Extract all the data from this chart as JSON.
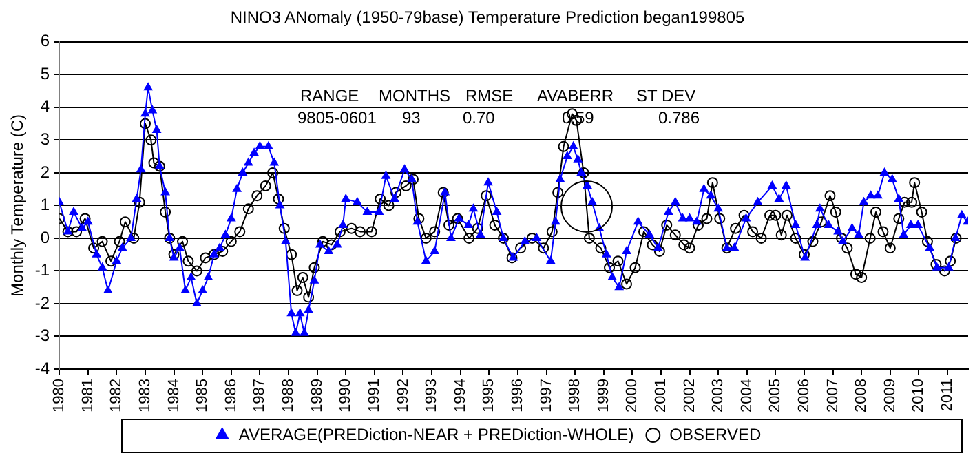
{
  "chart_data": {
    "type": "line",
    "title": "NINO3 ANomaly (1950-79base) Temperature Prediction began199805",
    "ylabel": "Monthly Temperature (C)",
    "xlim": [
      1980,
      2011.72
    ],
    "xticks": [
      1980,
      1981,
      1982,
      1983,
      1984,
      1985,
      1986,
      1987,
      1988,
      1989,
      1990,
      1991,
      1992,
      1993,
      1994,
      1995,
      1996,
      1997,
      1998,
      1999,
      2000,
      2001,
      2002,
      2003,
      2004,
      2005,
      2006,
      2007,
      2008,
      2009,
      2010,
      2011
    ],
    "ylim": [
      -4,
      6
    ],
    "yticks": [
      -4,
      -3,
      -2,
      -1,
      0,
      1,
      2,
      3,
      4,
      5,
      6
    ],
    "grid": "y",
    "legend": "bottom",
    "line_style": "solid",
    "annotations": [
      "RANGE",
      "MONTHS",
      "RMSE",
      "AVABERR",
      "ST DEV",
      "9805-0601",
      "93",
      "0.70",
      "0.59",
      "0.786"
    ],
    "series": [
      {
        "name": "AVERAGE(PREDiction-NEAR + PREDiction-WHOLE)",
        "color": "#0000ff",
        "marker": "triangle",
        "x": [
          1980.0,
          1980.3,
          1980.5,
          1980.8,
          1981.0,
          1981.3,
          1981.5,
          1981.7,
          1982.0,
          1982.2,
          1982.5,
          1982.7,
          1982.85,
          1983.0,
          1983.1,
          1983.25,
          1983.4,
          1983.5,
          1983.7,
          1983.85,
          1984.0,
          1984.2,
          1984.4,
          1984.6,
          1984.8,
          1985.0,
          1985.2,
          1985.4,
          1985.6,
          1985.8,
          1986.0,
          1986.2,
          1986.4,
          1986.6,
          1986.8,
          1987.0,
          1987.3,
          1987.5,
          1987.7,
          1987.9,
          1988.1,
          1988.25,
          1988.4,
          1988.55,
          1988.7,
          1988.9,
          1989.1,
          1989.4,
          1989.7,
          1989.9,
          1990.0,
          1990.4,
          1990.75,
          1991.16,
          1991.4,
          1991.7,
          1992.05,
          1992.3,
          1992.5,
          1992.8,
          1993.1,
          1993.46,
          1993.67,
          1993.95,
          1994.28,
          1994.45,
          1994.7,
          1994.97,
          1995.27,
          1995.5,
          1995.84,
          1996.25,
          1996.66,
          1997.15,
          1997.32,
          1997.48,
          1997.73,
          1997.94,
          1998.1,
          1998.22,
          1998.43,
          1998.6,
          1998.85,
          1999.1,
          1999.3,
          1999.54,
          1999.8,
          2000.2,
          2000.6,
          2000.9,
          2001.26,
          2001.5,
          2001.76,
          2002.0,
          2002.25,
          2002.5,
          2002.74,
          2003.0,
          2003.3,
          2003.56,
          2003.97,
          2004.38,
          2004.88,
          2005.12,
          2005.37,
          2005.7,
          2006.03,
          2006.44,
          2006.55,
          2006.85,
          2007.18,
          2007.34,
          2007.67,
          2007.9,
          2008.08,
          2008.32,
          2008.57,
          2008.8,
          2009.07,
          2009.3,
          2009.47,
          2009.72,
          2009.97,
          2010.38,
          2010.63,
          2011.04,
          2011.28,
          2011.5,
          2011.7
        ],
        "values": [
          1.1,
          0.2,
          0.8,
          0.3,
          0.5,
          -0.5,
          -0.9,
          -1.6,
          -0.7,
          -0.3,
          0.0,
          1.2,
          2.1,
          3.8,
          4.6,
          3.9,
          3.3,
          2.2,
          1.4,
          0.0,
          -0.6,
          -0.3,
          -1.6,
          -1.2,
          -2.0,
          -1.6,
          -1.2,
          -0.5,
          -0.3,
          0.1,
          0.6,
          1.5,
          2.0,
          2.3,
          2.6,
          2.8,
          2.8,
          2.3,
          1.0,
          -0.1,
          -2.3,
          -2.9,
          -2.3,
          -2.9,
          -2.2,
          -1.3,
          -0.2,
          -0.4,
          -0.2,
          0.4,
          1.2,
          1.1,
          0.8,
          0.8,
          1.9,
          1.2,
          2.1,
          1.8,
          0.5,
          -0.7,
          -0.4,
          1.4,
          0.0,
          0.6,
          0.4,
          0.9,
          0.1,
          1.7,
          0.8,
          0.0,
          -0.6,
          -0.1,
          0.0,
          -0.7,
          0.5,
          1.8,
          2.5,
          2.8,
          2.4,
          2.0,
          1.6,
          1.1,
          0.3,
          -0.5,
          -1.2,
          -1.5,
          -0.4,
          0.5,
          0.1,
          -0.3,
          0.8,
          1.1,
          0.6,
          0.6,
          0.5,
          1.5,
          1.3,
          0.9,
          -0.3,
          -0.3,
          0.6,
          1.1,
          1.6,
          1.2,
          1.6,
          0.4,
          -0.6,
          0.4,
          0.9,
          0.4,
          0.2,
          -0.1,
          0.3,
          0.1,
          1.1,
          1.3,
          1.3,
          2.0,
          1.8,
          1.2,
          0.1,
          0.4,
          0.4,
          -0.3,
          -0.9,
          -0.9,
          0.0,
          0.7,
          0.5
        ]
      },
      {
        "name": "OBSERVED",
        "color": "#000000",
        "marker": "circle",
        "x": [
          1980.0,
          1980.3,
          1980.6,
          1980.9,
          1981.2,
          1981.5,
          1981.8,
          1982.1,
          1982.3,
          1982.6,
          1982.8,
          1983.0,
          1983.2,
          1983.3,
          1983.5,
          1983.7,
          1983.85,
          1984.0,
          1984.3,
          1984.5,
          1984.8,
          1985.1,
          1985.4,
          1985.7,
          1986.0,
          1986.3,
          1986.6,
          1986.9,
          1987.2,
          1987.45,
          1987.65,
          1987.85,
          1988.1,
          1988.3,
          1988.5,
          1988.7,
          1988.9,
          1989.2,
          1989.5,
          1989.8,
          1990.2,
          1990.5,
          1990.9,
          1991.2,
          1991.5,
          1991.75,
          1992.1,
          1992.35,
          1992.55,
          1992.8,
          1993.1,
          1993.4,
          1993.6,
          1993.9,
          1994.3,
          1994.6,
          1994.9,
          1995.2,
          1995.5,
          1995.8,
          1996.1,
          1996.5,
          1996.9,
          1997.2,
          1997.4,
          1997.6,
          1997.9,
          1998.05,
          1998.3,
          1998.5,
          1998.9,
          1999.2,
          1999.5,
          1999.8,
          2000.1,
          2000.4,
          2000.7,
          2000.95,
          2001.2,
          2001.5,
          2001.8,
          2002.0,
          2002.3,
          2002.6,
          2002.8,
          2003.05,
          2003.3,
          2003.6,
          2003.9,
          2004.2,
          2004.5,
          2004.8,
          2005.0,
          2005.2,
          2005.4,
          2005.7,
          2006.0,
          2006.3,
          2006.6,
          2006.9,
          2007.1,
          2007.3,
          2007.5,
          2007.8,
          2008.0,
          2008.3,
          2008.5,
          2008.75,
          2009.0,
          2009.3,
          2009.5,
          2009.75,
          2009.85,
          2010.1,
          2010.3,
          2010.6,
          2010.9,
          2011.1,
          2011.3
        ],
        "values": [
          0.6,
          0.2,
          0.2,
          0.6,
          -0.3,
          -0.1,
          -0.7,
          -0.1,
          0.5,
          0.0,
          1.1,
          3.5,
          3.0,
          2.3,
          2.2,
          0.8,
          0.0,
          -0.5,
          -0.1,
          -0.7,
          -1.0,
          -0.6,
          -0.5,
          -0.4,
          -0.1,
          0.2,
          0.9,
          1.3,
          1.6,
          2.0,
          1.2,
          0.3,
          -0.5,
          -1.6,
          -1.2,
          -1.8,
          -0.9,
          -0.1,
          -0.2,
          0.2,
          0.3,
          0.2,
          0.2,
          1.2,
          1.0,
          1.4,
          1.6,
          1.8,
          0.6,
          0.0,
          0.2,
          1.4,
          0.4,
          0.6,
          0.0,
          0.3,
          1.3,
          0.4,
          0.0,
          -0.6,
          -0.3,
          0.0,
          -0.3,
          0.2,
          1.4,
          2.8,
          3.8,
          3.6,
          2.0,
          0.0,
          -0.3,
          -0.9,
          -0.7,
          -1.4,
          -0.9,
          0.2,
          -0.2,
          -0.4,
          0.4,
          0.1,
          -0.2,
          -0.3,
          0.4,
          0.6,
          1.7,
          0.6,
          -0.3,
          0.3,
          0.7,
          0.2,
          0.0,
          0.7,
          0.7,
          0.1,
          0.7,
          0.0,
          -0.5,
          -0.1,
          0.5,
          1.3,
          0.8,
          0.0,
          -0.3,
          -1.1,
          -1.2,
          0.0,
          0.8,
          0.2,
          -0.3,
          0.6,
          1.1,
          1.1,
          1.7,
          0.8,
          -0.1,
          -0.8,
          -1.0,
          -0.7,
          0.0
        ]
      }
    ]
  }
}
